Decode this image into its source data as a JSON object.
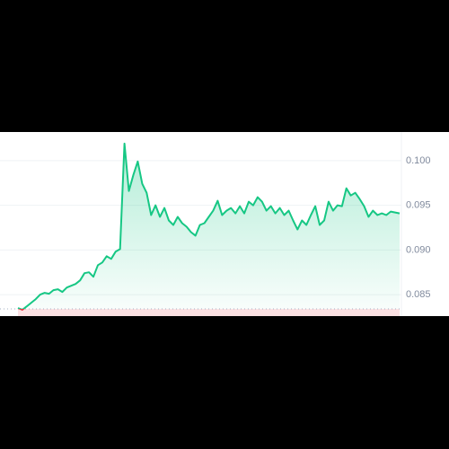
{
  "chart_data": {
    "type": "area",
    "values": [
      0.0835,
      0.0833,
      0.0837,
      0.0841,
      0.0845,
      0.085,
      0.0852,
      0.0851,
      0.0855,
      0.0856,
      0.0853,
      0.0858,
      0.086,
      0.0862,
      0.0866,
      0.0874,
      0.0875,
      0.087,
      0.0883,
      0.0886,
      0.0893,
      0.089,
      0.0898,
      0.0901,
      0.1019,
      0.0966,
      0.0984,
      0.0999,
      0.0974,
      0.0964,
      0.0939,
      0.095,
      0.0937,
      0.0947,
      0.0933,
      0.0928,
      0.0937,
      0.093,
      0.0926,
      0.092,
      0.0916,
      0.0928,
      0.093,
      0.0937,
      0.0944,
      0.0955,
      0.0939,
      0.0944,
      0.0947,
      0.0941,
      0.0949,
      0.0941,
      0.0954,
      0.095,
      0.0959,
      0.0954,
      0.0944,
      0.0949,
      0.0941,
      0.0947,
      0.0939,
      0.0944,
      0.0933,
      0.0923,
      0.0933,
      0.0928,
      0.0939,
      0.0949,
      0.0928,
      0.0933,
      0.0954,
      0.0944,
      0.095,
      0.0949,
      0.0969,
      0.0961,
      0.0964,
      0.0957,
      0.0949,
      0.0937,
      0.0944,
      0.0939,
      0.0941,
      0.0939,
      0.0943,
      0.0942,
      0.0941
    ],
    "baseline": 0.0834,
    "color": "#16c784",
    "below_color": "#ea3943",
    "ylim": [
      0.0826,
      0.1032
    ],
    "yticks": [
      {
        "value": 0.085,
        "label": "0.085"
      },
      {
        "value": 0.09,
        "label": "0.090"
      },
      0.095,
      {
        "value": 0.1,
        "label": "0.100"
      }
    ],
    "grid": true
  }
}
